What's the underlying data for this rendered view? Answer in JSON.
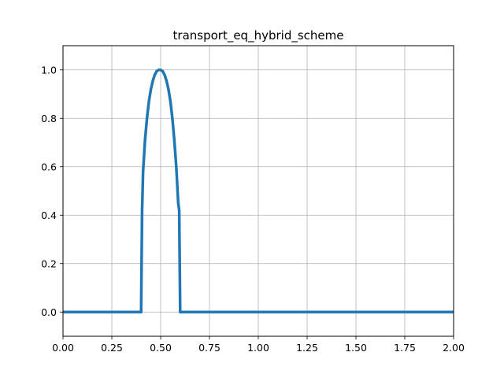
{
  "chart_data": {
    "type": "line",
    "title": "transport_eq_hybrid_scheme",
    "xlabel": "",
    "ylabel": "",
    "xlim": [
      0.0,
      2.0
    ],
    "ylim": [
      -0.1,
      1.1
    ],
    "grid": true,
    "x_ticks": [
      "0.00",
      "0.25",
      "0.50",
      "0.75",
      "1.00",
      "1.25",
      "1.50",
      "1.75",
      "2.00"
    ],
    "y_ticks": [
      "0.0",
      "0.2",
      "0.4",
      "0.6",
      "0.8",
      "1.0"
    ],
    "x_tick_values": [
      0.0,
      0.25,
      0.5,
      0.75,
      1.0,
      1.25,
      1.5,
      1.75,
      2.0
    ],
    "y_tick_values": [
      0.0,
      0.2,
      0.4,
      0.6,
      0.8,
      1.0
    ],
    "series": [
      {
        "color": "#1f77b4",
        "x": [
          0.0,
          0.399,
          0.4,
          0.405,
          0.41,
          0.42,
          0.43,
          0.44,
          0.45,
          0.46,
          0.47,
          0.48,
          0.49,
          0.5,
          0.51,
          0.52,
          0.53,
          0.54,
          0.55,
          0.56,
          0.57,
          0.58,
          0.59,
          0.595,
          0.6,
          0.601,
          2.0
        ],
        "y": [
          0.0,
          0.0,
          0.0,
          0.42,
          0.58,
          0.71,
          0.8,
          0.87,
          0.92,
          0.955,
          0.98,
          0.995,
          1.0,
          1.0,
          0.995,
          0.98,
          0.955,
          0.92,
          0.87,
          0.8,
          0.71,
          0.6,
          0.45,
          0.42,
          0.0,
          0.0,
          0.0
        ]
      }
    ]
  }
}
